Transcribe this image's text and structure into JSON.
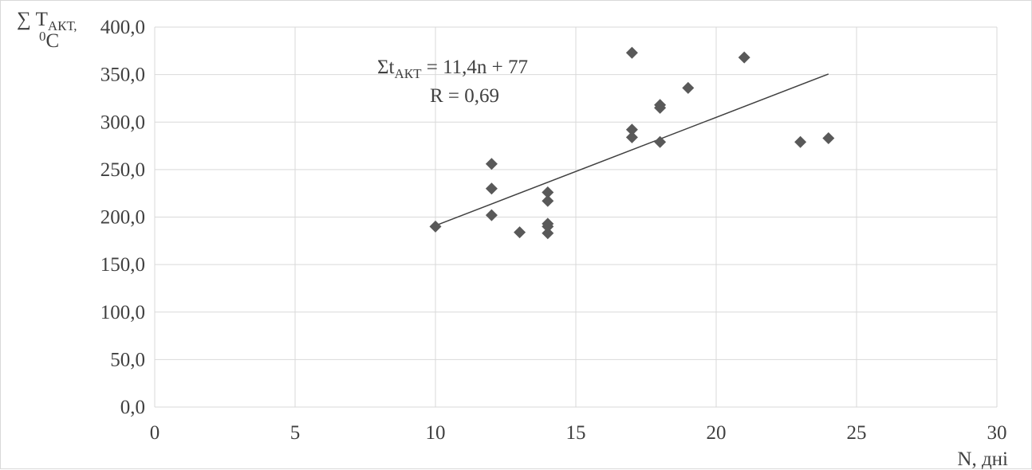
{
  "chart_data": {
    "type": "scatter",
    "title": "",
    "xlabel": "N, дні",
    "ylabel": {
      "symbol": "∑ T",
      "subscript": "АКТ,",
      "superscript": "0",
      "unit": "C"
    },
    "xlim": [
      0,
      30
    ],
    "ylim": [
      0,
      400
    ],
    "x_ticks": [
      "0",
      "5",
      "10",
      "15",
      "20",
      "25",
      "30"
    ],
    "y_ticks": [
      "0,0",
      "50,0",
      "100,0",
      "150,0",
      "200,0",
      "250,0",
      "300,0",
      "350,0",
      "400,0"
    ],
    "grid": true,
    "marker_color": "#595959",
    "line_color": "#404040",
    "points": [
      {
        "x": 10,
        "y": 190
      },
      {
        "x": 12,
        "y": 256
      },
      {
        "x": 12,
        "y": 230
      },
      {
        "x": 12,
        "y": 202
      },
      {
        "x": 13,
        "y": 184
      },
      {
        "x": 14,
        "y": 226
      },
      {
        "x": 14,
        "y": 217
      },
      {
        "x": 14,
        "y": 193
      },
      {
        "x": 14,
        "y": 190
      },
      {
        "x": 14,
        "y": 183
      },
      {
        "x": 17,
        "y": 373
      },
      {
        "x": 17,
        "y": 292
      },
      {
        "x": 17,
        "y": 284
      },
      {
        "x": 18,
        "y": 318
      },
      {
        "x": 18,
        "y": 315
      },
      {
        "x": 18,
        "y": 279
      },
      {
        "x": 19,
        "y": 336
      },
      {
        "x": 21,
        "y": 368
      },
      {
        "x": 23,
        "y": 279
      },
      {
        "x": 24,
        "y": 283
      }
    ],
    "trendline": {
      "x_range": [
        10,
        24
      ],
      "slope": 11.4,
      "intercept": 77
    },
    "annotations": {
      "equation_prefix": "Σt",
      "equation_subscript": "АКТ",
      "equation_suffix": " = 11,4n + 77",
      "r_text": "R = 0,69"
    }
  }
}
